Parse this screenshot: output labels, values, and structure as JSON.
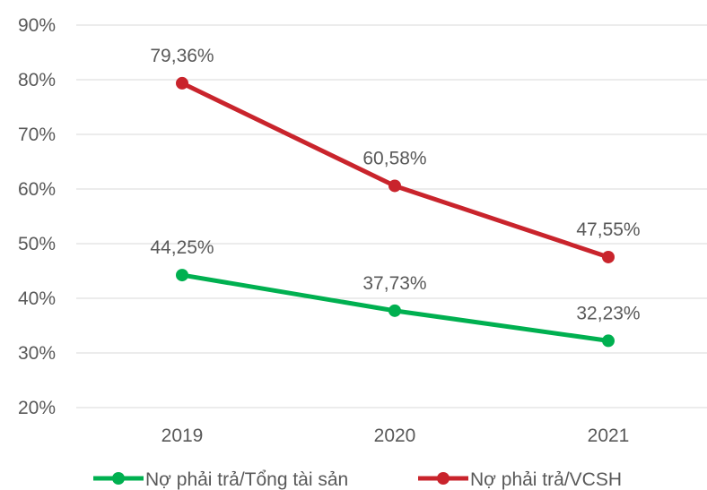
{
  "chart_data": {
    "type": "line",
    "categories": [
      "2019",
      "2020",
      "2021"
    ],
    "ylim": [
      0.2,
      0.9
    ],
    "yticks": [
      "20%",
      "30%",
      "40%",
      "50%",
      "60%",
      "70%",
      "80%",
      "90%"
    ],
    "grid": true,
    "legend_position": "bottom",
    "series": [
      {
        "name": "Nợ phải trả/Tổng tài sản",
        "color": "#00b050",
        "values": [
          0.4425,
          0.3773,
          0.3223
        ],
        "labels": [
          "44,25%",
          "37,73%",
          "32,23%"
        ]
      },
      {
        "name": "Nợ phải trả/VCSH",
        "color": "#c9242c",
        "values": [
          0.7936,
          0.6058,
          0.4755
        ],
        "labels": [
          "79,36%",
          "60,58%",
          "47,55%"
        ]
      }
    ]
  }
}
